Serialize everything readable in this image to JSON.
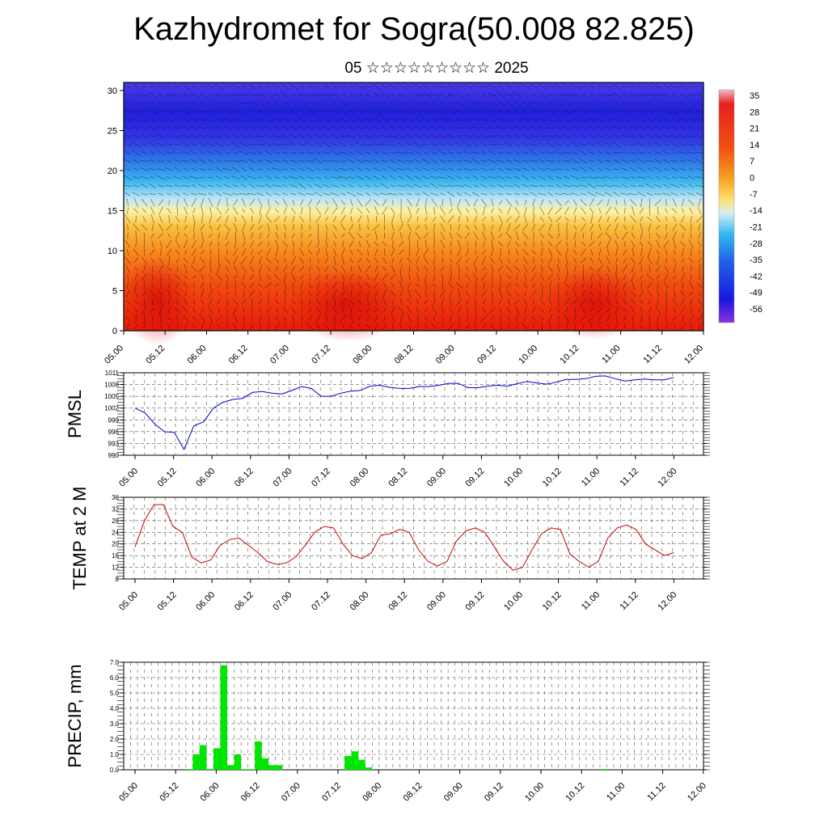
{
  "title": "Kazhydromet for Sogra(50.008 82.825)",
  "subtitle": "05 ☆☆☆☆☆☆☆☆☆ 2025",
  "chart_data": [
    {
      "type": "heatmap",
      "name": "vertical-section",
      "xticks": [
        "05.00",
        "05.12",
        "06.00",
        "06.12",
        "07.00",
        "07.12",
        "08.00",
        "08.12",
        "09.00",
        "09.12",
        "10.00",
        "10.12",
        "11.00",
        "11.12",
        "12.00"
      ],
      "yticks": [
        0,
        5,
        10,
        15,
        20,
        25,
        30
      ],
      "ylim": [
        0,
        31
      ],
      "colorbar_labels": [
        "35",
        "28",
        "21",
        "14",
        "7",
        "0",
        "-7",
        "-14",
        "-21",
        "-28",
        "-35",
        "-42",
        "-49",
        "-56"
      ],
      "colors": {
        "warm": "#e8200c",
        "mid": "#ffe680",
        "cold": "#3030e8",
        "top": "#6a20e0"
      },
      "overlay": "wind-vectors"
    },
    {
      "type": "line",
      "ylabel": "PMSL",
      "ylim": [
        990,
        1011
      ],
      "yticks": [
        "990",
        "993",
        "996",
        "999",
        "1002",
        "1005",
        "1008",
        "1011"
      ],
      "xticks": [
        "05.00",
        "05.12",
        "06.00",
        "06.12",
        "07.00",
        "07.12",
        "08.00",
        "08.12",
        "09.00",
        "09.12",
        "10.00",
        "10.12",
        "11.00",
        "11.12",
        "12.00"
      ],
      "color": "#0000cc",
      "values": [
        1002,
        1000.8,
        998,
        996,
        995.8,
        991.5,
        997.5,
        998.5,
        1002,
        1003.5,
        1004.2,
        1004.5,
        1006,
        1006.2,
        1005.8,
        1005.6,
        1006.5,
        1007.5,
        1007,
        1005,
        1005,
        1005.8,
        1006.3,
        1006.5,
        1007.6,
        1007.8,
        1007.3,
        1007,
        1007,
        1007.5,
        1007.5,
        1007.8,
        1008.3,
        1008.3,
        1007.2,
        1007.2,
        1007.6,
        1007.8,
        1007.6,
        1008.2,
        1008.8,
        1008.4,
        1008.1,
        1008.6,
        1009.3,
        1009.3,
        1009.5,
        1010.1,
        1010.2,
        1009.5,
        1008.9,
        1009.2,
        1009.4,
        1009.2,
        1009.2,
        1009.8
      ]
    },
    {
      "type": "line",
      "ylabel": "TEMP at 2 M",
      "ylim": [
        8,
        36
      ],
      "yticks": [
        "8",
        "12",
        "16",
        "20",
        "24",
        "28",
        "32",
        "36"
      ],
      "xticks": [
        "05.00",
        "05.12",
        "06.00",
        "06.12",
        "07.00",
        "07.12",
        "08.00",
        "08.12",
        "09.00",
        "09.12",
        "10.00",
        "10.12",
        "11.00",
        "11.12",
        "12.00"
      ],
      "color": "#cc0000",
      "values": [
        19,
        28,
        33.5,
        33.5,
        26,
        24,
        15.5,
        13.5,
        14.5,
        19.5,
        21.5,
        22,
        19.5,
        17,
        14,
        13,
        13.5,
        15.5,
        19.5,
        24,
        26,
        25.5,
        20,
        16,
        15,
        17,
        23,
        23.5,
        25,
        24,
        18,
        14,
        12.5,
        14,
        21,
        24.5,
        25.5,
        24,
        19,
        14,
        11,
        12,
        18,
        23.5,
        25.5,
        25,
        16.5,
        14,
        12,
        14,
        22,
        25.5,
        26.5,
        25,
        20,
        18,
        16,
        17
      ]
    },
    {
      "type": "bar",
      "ylabel": "PRECIP, mm",
      "ylim": [
        0,
        7
      ],
      "yticks": [
        "0.0",
        "1.0",
        "2.0",
        "3.0",
        "4.0",
        "5.0",
        "6.0",
        "7.0"
      ],
      "xticks": [
        "05.00",
        "05.12",
        "06.00",
        "06.12",
        "07.00",
        "07.12",
        "08.00",
        "08.12",
        "09.00",
        "09.12",
        "10.00",
        "10.12",
        "11.00",
        "11.12",
        "12.00"
      ],
      "color": "#00e600",
      "values": [
        0,
        0,
        0,
        0,
        0,
        0,
        0,
        0,
        0,
        0.04,
        1.0,
        1.6,
        0.04,
        1.4,
        6.8,
        0.3,
        1.0,
        0.04,
        0.04,
        1.85,
        0.75,
        0.3,
        0.3,
        0,
        0,
        0,
        0,
        0,
        0,
        0,
        0,
        0,
        0.9,
        1.2,
        0.65,
        0.15,
        0,
        0,
        0,
        0,
        0,
        0,
        0,
        0,
        0,
        0,
        0,
        0,
        0,
        0,
        0,
        0,
        0,
        0,
        0,
        0,
        0,
        0,
        0,
        0,
        0,
        0,
        0,
        0,
        0,
        0,
        0,
        0,
        0,
        0.05,
        0,
        0,
        0,
        0,
        0,
        0,
        0,
        0,
        0,
        0,
        0,
        0,
        0,
        0
      ]
    }
  ]
}
